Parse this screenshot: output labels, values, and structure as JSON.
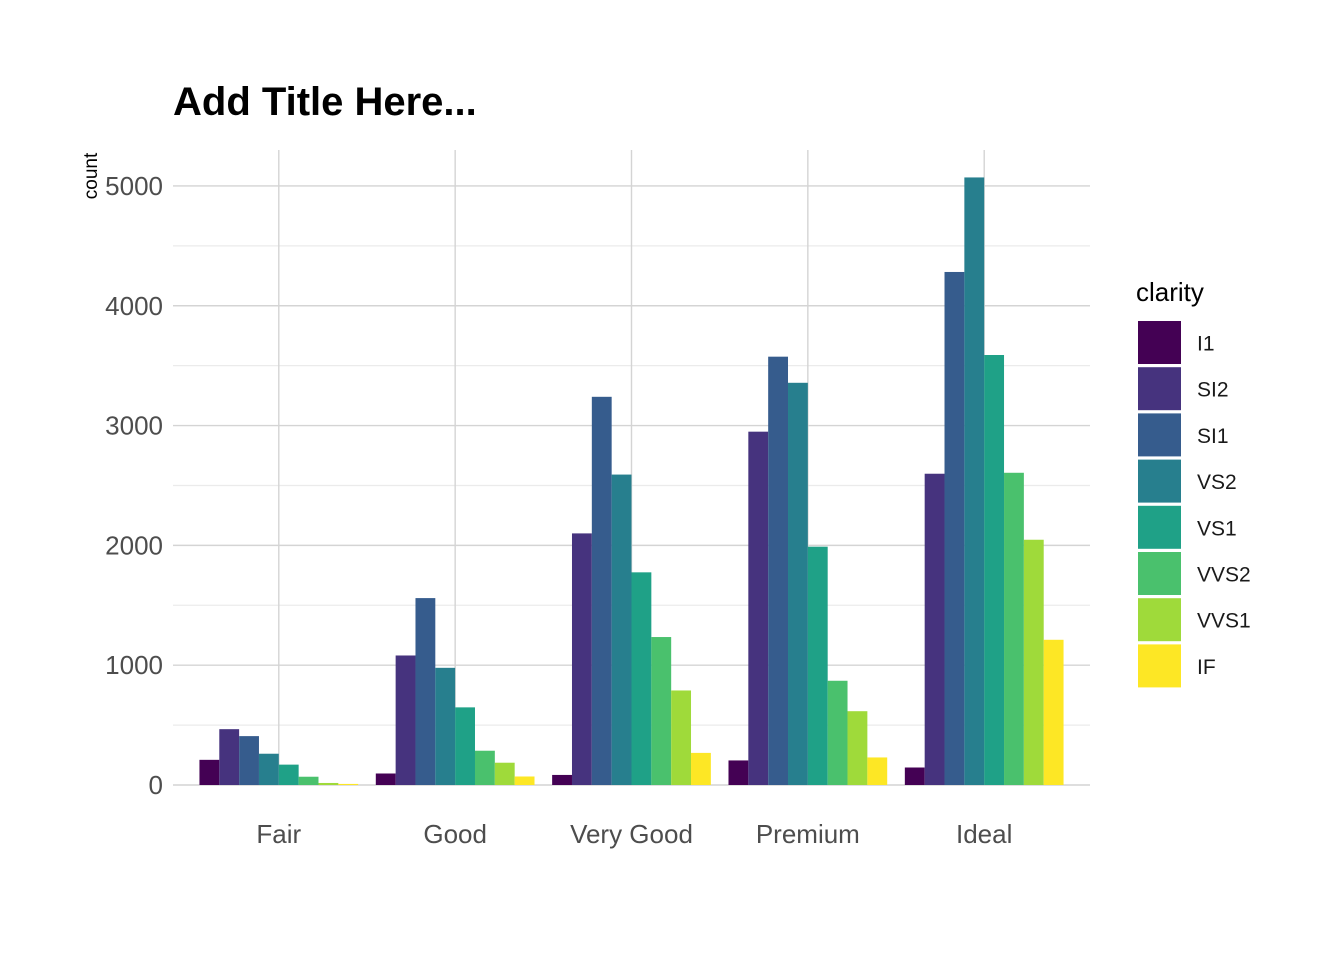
{
  "chart_data": {
    "type": "bar",
    "title": "Add Title Here...",
    "xlabel": "",
    "ylabel": "count",
    "ylim": [
      0,
      5300
    ],
    "yticks": [
      "0",
      "1000",
      "2000",
      "3000",
      "4000",
      "5000"
    ],
    "grid": true,
    "legend": {
      "title": "clarity",
      "position": "right"
    },
    "categories": [
      "Fair",
      "Good",
      "Very Good",
      "Premium",
      "Ideal"
    ],
    "series": [
      {
        "name": "I1",
        "color": "#440154",
        "values": [
          210,
          96,
          84,
          205,
          146
        ]
      },
      {
        "name": "SI2",
        "color": "#46337E",
        "values": [
          466,
          1081,
          2100,
          2949,
          2598
        ]
      },
      {
        "name": "SI1",
        "color": "#365C8D",
        "values": [
          408,
          1560,
          3240,
          3575,
          4282
        ]
      },
      {
        "name": "VS2",
        "color": "#277F8E",
        "values": [
          261,
          978,
          2591,
          3357,
          5071
        ]
      },
      {
        "name": "VS1",
        "color": "#1FA187",
        "values": [
          170,
          648,
          1775,
          1989,
          3589
        ]
      },
      {
        "name": "VVS2",
        "color": "#4AC16D",
        "values": [
          69,
          286,
          1235,
          870,
          2606
        ]
      },
      {
        "name": "VVS1",
        "color": "#9FDA3A",
        "values": [
          17,
          186,
          789,
          616,
          2047
        ]
      },
      {
        "name": "IF",
        "color": "#FDE725",
        "values": [
          9,
          71,
          268,
          230,
          1212
        ]
      }
    ]
  }
}
